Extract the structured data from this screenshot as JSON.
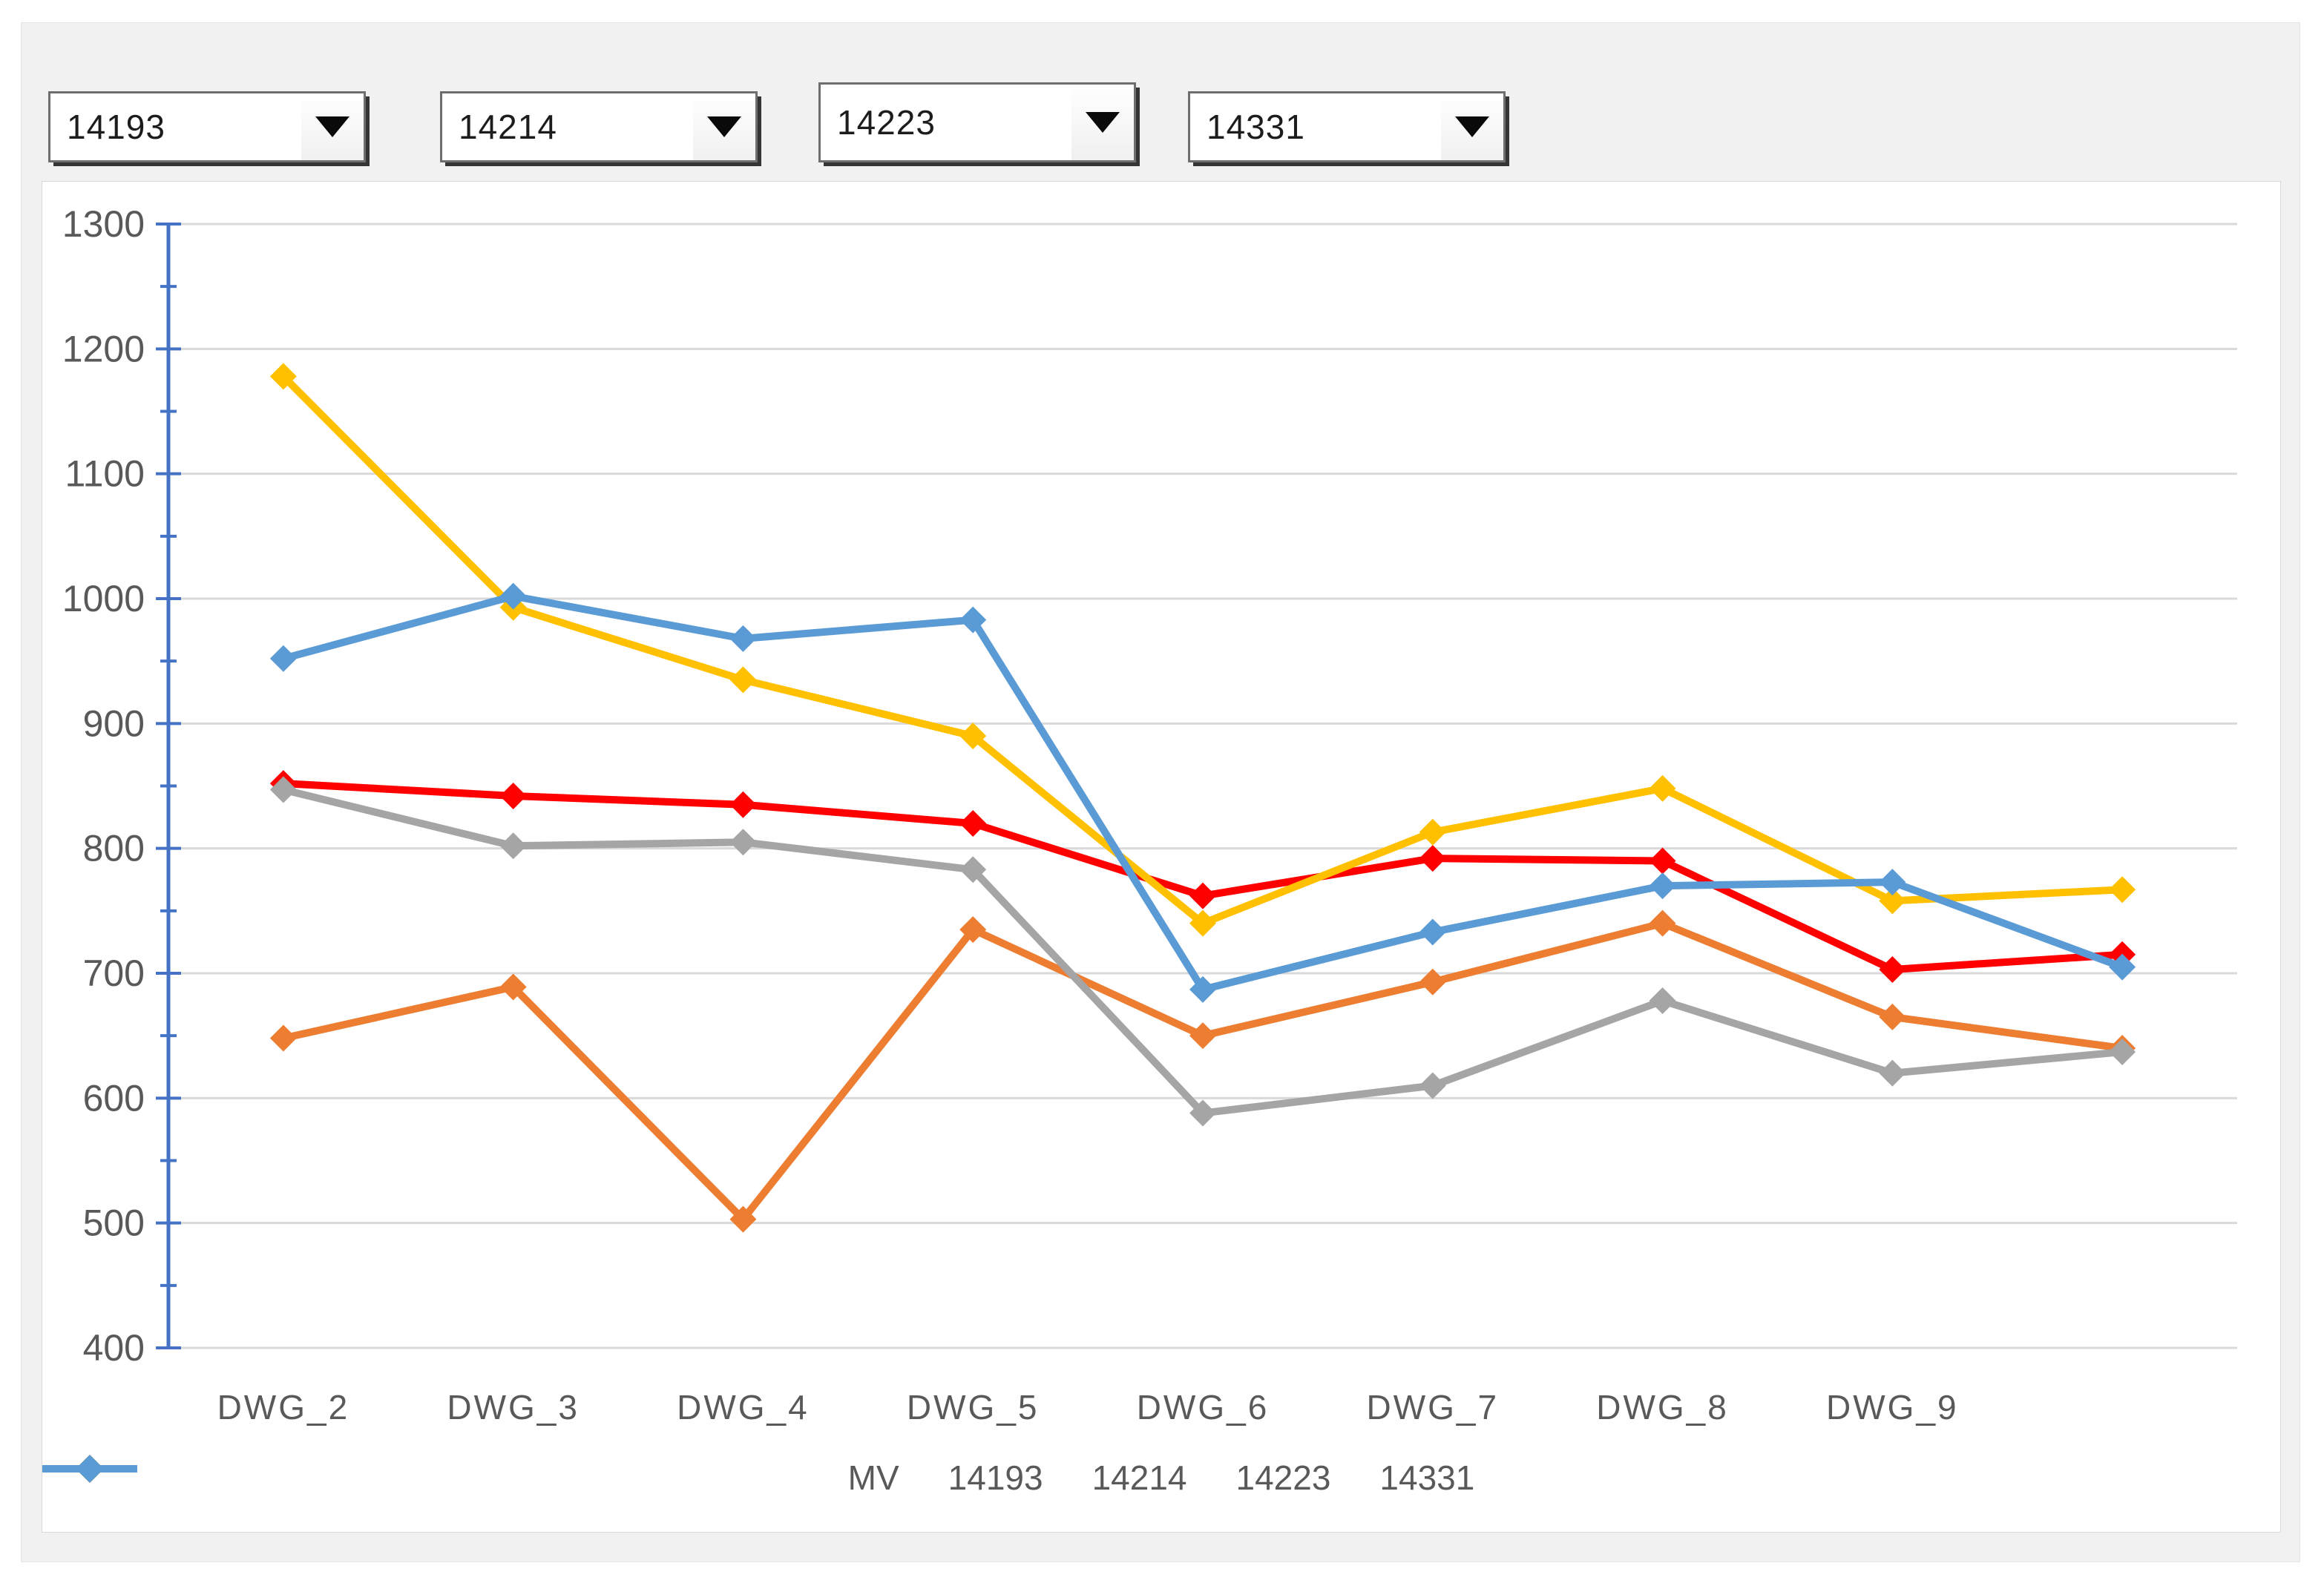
{
  "dropdowns": [
    {
      "value": "14193"
    },
    {
      "value": "14214"
    },
    {
      "value": "14223"
    },
    {
      "value": "14331"
    }
  ],
  "chart_data": {
    "type": "line",
    "categories": [
      "DWG_2",
      "DWG_3",
      "DWG_4",
      "DWG_5",
      "DWG_6",
      "DWG_7",
      "DWG_8",
      "DWG_9",
      ""
    ],
    "series": [
      {
        "name": "MV",
        "color": "#FF0000",
        "values": [
          852,
          842,
          835,
          820,
          762,
          792,
          790,
          703,
          715
        ]
      },
      {
        "name": "14193",
        "color": "#ED7D31",
        "values": [
          648,
          689,
          503,
          735,
          650,
          693,
          740,
          665,
          640
        ]
      },
      {
        "name": "14214",
        "color": "#A5A5A5",
        "values": [
          847,
          802,
          805,
          783,
          588,
          610,
          678,
          620,
          637
        ]
      },
      {
        "name": "14223",
        "color": "#FFC000",
        "values": [
          1178,
          993,
          935,
          890,
          740,
          813,
          848,
          758,
          767
        ]
      },
      {
        "name": "14331",
        "color": "#5B9BD5",
        "values": [
          952,
          1002,
          968,
          983,
          687,
          733,
          770,
          773,
          705
        ]
      }
    ],
    "title": "",
    "xlabel": "",
    "ylabel": "",
    "ylim": [
      400,
      1300
    ],
    "ytick_step": 100,
    "minor_tick_step": 50,
    "yticks": [
      400,
      500,
      600,
      700,
      800,
      900,
      1000,
      1100,
      1200,
      1300
    ],
    "grid": true,
    "legend_position": "bottom",
    "marker": "diamond",
    "axis_color": "#4472C4",
    "grid_color": "#D9D9D9",
    "label_color": "#595959"
  }
}
